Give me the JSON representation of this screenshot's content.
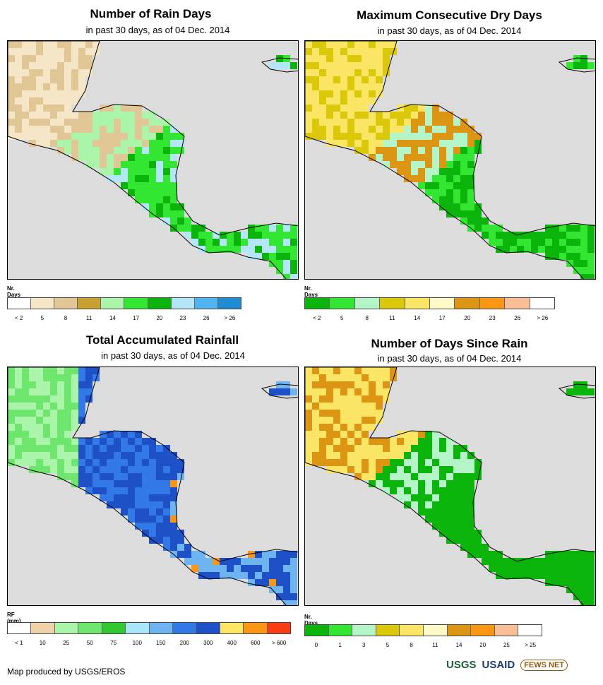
{
  "panels": {
    "rain_days": {
      "title": "Number of Rain Days",
      "subtitle": "in past 30 days, as of 04 Dec. 2014",
      "legend_title": "Nr. Days",
      "colors": [
        "#ffffff",
        "#f5e6c8",
        "#e1c696",
        "#c8a032",
        "#aaf5aa",
        "#32e632",
        "#0ab40a",
        "#b4e6fa",
        "#50b4f0",
        "#1e8cd2"
      ],
      "labels": [
        "< 2",
        "5",
        "8",
        "11",
        "14",
        "17",
        "20",
        "23",
        "26",
        "> 26"
      ]
    },
    "dry_days": {
      "title": "Maximum Consecutive Dry Days",
      "subtitle": "in past 30 days, as of 04 Dec. 2014",
      "legend_title": "Nr. Days",
      "colors": [
        "#0ab40a",
        "#32e632",
        "#b4f5c8",
        "#dcc80a",
        "#fae664",
        "#fffac8",
        "#dc9614",
        "#fa9614",
        "#fabe96",
        "#ffffff"
      ],
      "labels": [
        "< 2",
        "5",
        "8",
        "11",
        "14",
        "17",
        "20",
        "23",
        "26",
        "> 26"
      ]
    },
    "rainfall": {
      "title": "Total Accumulated Rainfall",
      "subtitle": "in past 30 days, as of 04 Dec. 2014",
      "legend_title": "RF (mm)",
      "colors": [
        "#ffffff",
        "#f0d2aa",
        "#aaf5aa",
        "#6ee66e",
        "#32c832",
        "#aae6fa",
        "#6eb4f0",
        "#3278e6",
        "#1e50c8",
        "#ffe664",
        "#fa9614",
        "#fa3c14"
      ],
      "labels": [
        "< 1",
        "10",
        "25",
        "50",
        "75",
        "100",
        "150",
        "200",
        "300",
        "400",
        "600",
        "> 600"
      ]
    },
    "since_rain": {
      "title": "Number of Days Since Rain",
      "subtitle": "in past 30 days, as of 04 Dec. 2014",
      "legend_title": "Nr. Days",
      "colors": [
        "#0ab40a",
        "#32e632",
        "#b4f5c8",
        "#dcc80a",
        "#fae664",
        "#fffac8",
        "#dc9614",
        "#fa9614",
        "#fabe96",
        "#ffffff"
      ],
      "labels": [
        "0",
        "1",
        "3",
        "5",
        "8",
        "11",
        "14",
        "20",
        "25",
        "> 25"
      ]
    }
  },
  "footer": {
    "credit": "Map produced by USGS/EROS"
  },
  "logos": {
    "usgs": "USGS",
    "usaid": "USAID",
    "fews": "FEWS NET"
  }
}
